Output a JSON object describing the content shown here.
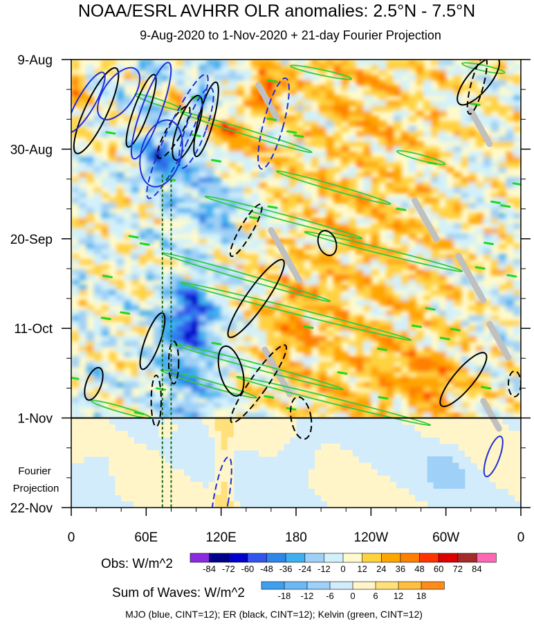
{
  "chart_data": {
    "type": "heatmap",
    "title": "NOAA/ESRL AVHRR OLR anomalies: 2.5°N - 7.5°N",
    "subtitle": "9-Aug-2020 to 1-Nov-2020 + 21-day Fourier Projection",
    "x_ticks": [
      "0",
      "60E",
      "120E",
      "180",
      "120W",
      "60W",
      "0"
    ],
    "x_tick_lons": [
      0,
      60,
      120,
      180,
      240,
      300,
      360
    ],
    "xlim": [
      0,
      360
    ],
    "y_ticks": [
      "9-Aug",
      "30-Aug",
      "20-Sep",
      "11-Oct",
      "1-Nov",
      "22-Nov"
    ],
    "y_tick_days": [
      0,
      21,
      42,
      63,
      84,
      105
    ],
    "ylim_days": [
      0,
      105
    ],
    "obs_end_day": 84,
    "projection_label": "Fourier Projection",
    "projection_label_lines": [
      "Fourier",
      "Projection"
    ],
    "obs_colorbar": {
      "label": "Obs: W/m^2",
      "levels": [
        "-84",
        "-72",
        "-60",
        "-48",
        "-36",
        "-24",
        "-12",
        "0",
        "12",
        "24",
        "36",
        "48",
        "60",
        "72",
        "84"
      ],
      "colors": [
        "#8a2be2",
        "#00008b",
        "#0000cd",
        "#3355ee",
        "#2e86e8",
        "#3fb0f0",
        "#9fd0f5",
        "#d2f1fb",
        "#fffacd",
        "#ffd23f",
        "#ffa500",
        "#ff7f00",
        "#ff3300",
        "#dc0000",
        "#a52a2a",
        "#ff69b4"
      ]
    },
    "waves_colorbar": {
      "label": "Sum of Waves: W/m^2",
      "levels": [
        "-18",
        "-12",
        "-6",
        "0",
        "6",
        "12",
        "18"
      ],
      "colors": [
        "#3fa0f0",
        "#6eb8f5",
        "#9ed0f8",
        "#d2ecfb",
        "#fff5c8",
        "#ffe07a",
        "#ffc040",
        "#ff8c1a"
      ]
    },
    "footer": "MJO (blue, CINT=12); ER (black, CINT=12); Kelvin (green, CINT=12)",
    "contours": {
      "mjo": {
        "color": "#1e2fd6",
        "ellipses": [
          {
            "lon": 12,
            "day": 10,
            "rlon": 7,
            "rday": 8,
            "rot": 30,
            "neg": false
          },
          {
            "lon": 38,
            "day": 8,
            "rlon": 12,
            "rday": 7,
            "rot": 35,
            "neg": false
          },
          {
            "lon": 64,
            "day": 12,
            "rlon": 8,
            "rday": 12,
            "rot": 20,
            "neg": false
          },
          {
            "lon": 72,
            "day": 22,
            "rlon": 16,
            "rday": 8,
            "rot": 15,
            "neg": false
          },
          {
            "lon": 85,
            "day": 18,
            "rlon": 9,
            "rday": 16,
            "rot": 25,
            "neg": true
          },
          {
            "lon": 100,
            "day": 16,
            "rlon": 8,
            "rday": 10,
            "rot": 20,
            "neg": true
          },
          {
            "lon": 162,
            "day": 15,
            "rlon": 8,
            "rday": 11,
            "rot": 15,
            "neg": true
          },
          {
            "lon": 120,
            "day": 103,
            "rlon": 6,
            "rday": 10,
            "rot": 10,
            "neg": true
          },
          {
            "lon": 338,
            "day": 93,
            "rlon": 5,
            "rday": 5,
            "rot": 20,
            "neg": false
          }
        ]
      },
      "er": {
        "color": "#000000",
        "ellipses": [
          {
            "lon": 20,
            "day": 12,
            "rlon": 9,
            "rday": 11,
            "rot": 25,
            "neg": false
          },
          {
            "lon": 56,
            "day": 12,
            "rlon": 6,
            "rday": 9,
            "rot": 20,
            "neg": false
          },
          {
            "lon": 82,
            "day": 17,
            "rlon": 6,
            "rday": 7,
            "rot": 30,
            "neg": true
          },
          {
            "lon": 93,
            "day": 16,
            "rlon": 8,
            "rday": 8,
            "rot": 20,
            "neg": false
          },
          {
            "lon": 108,
            "day": 14,
            "rlon": 6,
            "rday": 9,
            "rot": 15,
            "neg": false
          },
          {
            "lon": 140,
            "day": 40,
            "rlon": 5,
            "rday": 7,
            "rot": 30,
            "neg": true
          },
          {
            "lon": 148,
            "day": 56,
            "rlon": 8,
            "rday": 11,
            "rot": 35,
            "neg": false
          },
          {
            "lon": 205,
            "day": 43,
            "rlon": 7,
            "rday": 3,
            "rot": -20,
            "neg": false
          },
          {
            "lon": 65,
            "day": 66,
            "rlon": 6,
            "rday": 7,
            "rot": 20,
            "neg": false
          },
          {
            "lon": 18,
            "day": 76,
            "rlon": 6,
            "rday": 4,
            "rot": 20,
            "neg": false
          },
          {
            "lon": 128,
            "day": 73,
            "rlon": 9,
            "rday": 6,
            "rot": -15,
            "neg": false
          },
          {
            "lon": 150,
            "day": 76,
            "rlon": 7,
            "rday": 11,
            "rot": 35,
            "neg": true
          },
          {
            "lon": 82,
            "day": 71,
            "rlon": 4,
            "rday": 5,
            "rot": 0,
            "neg": true
          },
          {
            "lon": 68,
            "day": 80,
            "rlon": 4,
            "rday": 6,
            "rot": 0,
            "neg": true
          },
          {
            "lon": 314,
            "day": 75,
            "rlon": 8,
            "rday": 8,
            "rot": 40,
            "neg": false
          },
          {
            "lon": 326,
            "day": 5,
            "rlon": 9,
            "rday": 7,
            "rot": 40,
            "neg": false
          },
          {
            "lon": 325,
            "day": 6,
            "rlon": 5,
            "rday": 7,
            "rot": 15,
            "neg": true
          },
          {
            "lon": 184,
            "day": 84,
            "rlon": 8,
            "rday": 5,
            "rot": -10,
            "neg": true
          },
          {
            "lon": 355,
            "day": 76,
            "rlon": 5,
            "rday": 3,
            "rot": 0,
            "neg": true
          }
        ]
      },
      "kelvin": {
        "color": "#2ecc40",
        "bands": [
          {
            "lon": 200,
            "day": 3,
            "len": 50,
            "angle": 12
          },
          {
            "lon": 330,
            "day": 2,
            "len": 35,
            "angle": 12
          },
          {
            "lon": 70,
            "day": 10,
            "len": 40,
            "angle": 18
          },
          {
            "lon": 140,
            "day": 17,
            "len": 110,
            "angle": 17
          },
          {
            "lon": 280,
            "day": 23,
            "len": 40,
            "angle": 15
          },
          {
            "lon": 210,
            "day": 30,
            "len": 95,
            "angle": 16
          },
          {
            "lon": 170,
            "day": 37,
            "len": 130,
            "angle": 15
          },
          {
            "lon": 250,
            "day": 45,
            "len": 130,
            "angle": 14
          },
          {
            "lon": 140,
            "day": 51,
            "len": 140,
            "angle": 16
          },
          {
            "lon": 180,
            "day": 59,
            "len": 190,
            "angle": 14
          },
          {
            "lon": 150,
            "day": 72,
            "len": 140,
            "angle": 15
          },
          {
            "lon": 110,
            "day": 76,
            "len": 80,
            "angle": 16
          },
          {
            "lon": 210,
            "day": 80,
            "len": 160,
            "angle": 14
          },
          {
            "lon": 40,
            "day": 82,
            "len": 50,
            "angle": 16
          }
        ]
      }
    },
    "gray_streaks": [
      {
        "lon": 150,
        "day": 6,
        "len": 30
      },
      {
        "lon": 320,
        "day": 12,
        "len": 30
      },
      {
        "lon": 160,
        "day": 40,
        "len": 45
      },
      {
        "lon": 275,
        "day": 33,
        "len": 35
      },
      {
        "lon": 310,
        "day": 46,
        "len": 40
      },
      {
        "lon": 335,
        "day": 62,
        "len": 30
      },
      {
        "lon": 155,
        "day": 68,
        "len": 40
      },
      {
        "lon": 330,
        "day": 80,
        "len": 25
      }
    ],
    "dotted_lines_lon": [
      73,
      80
    ]
  }
}
